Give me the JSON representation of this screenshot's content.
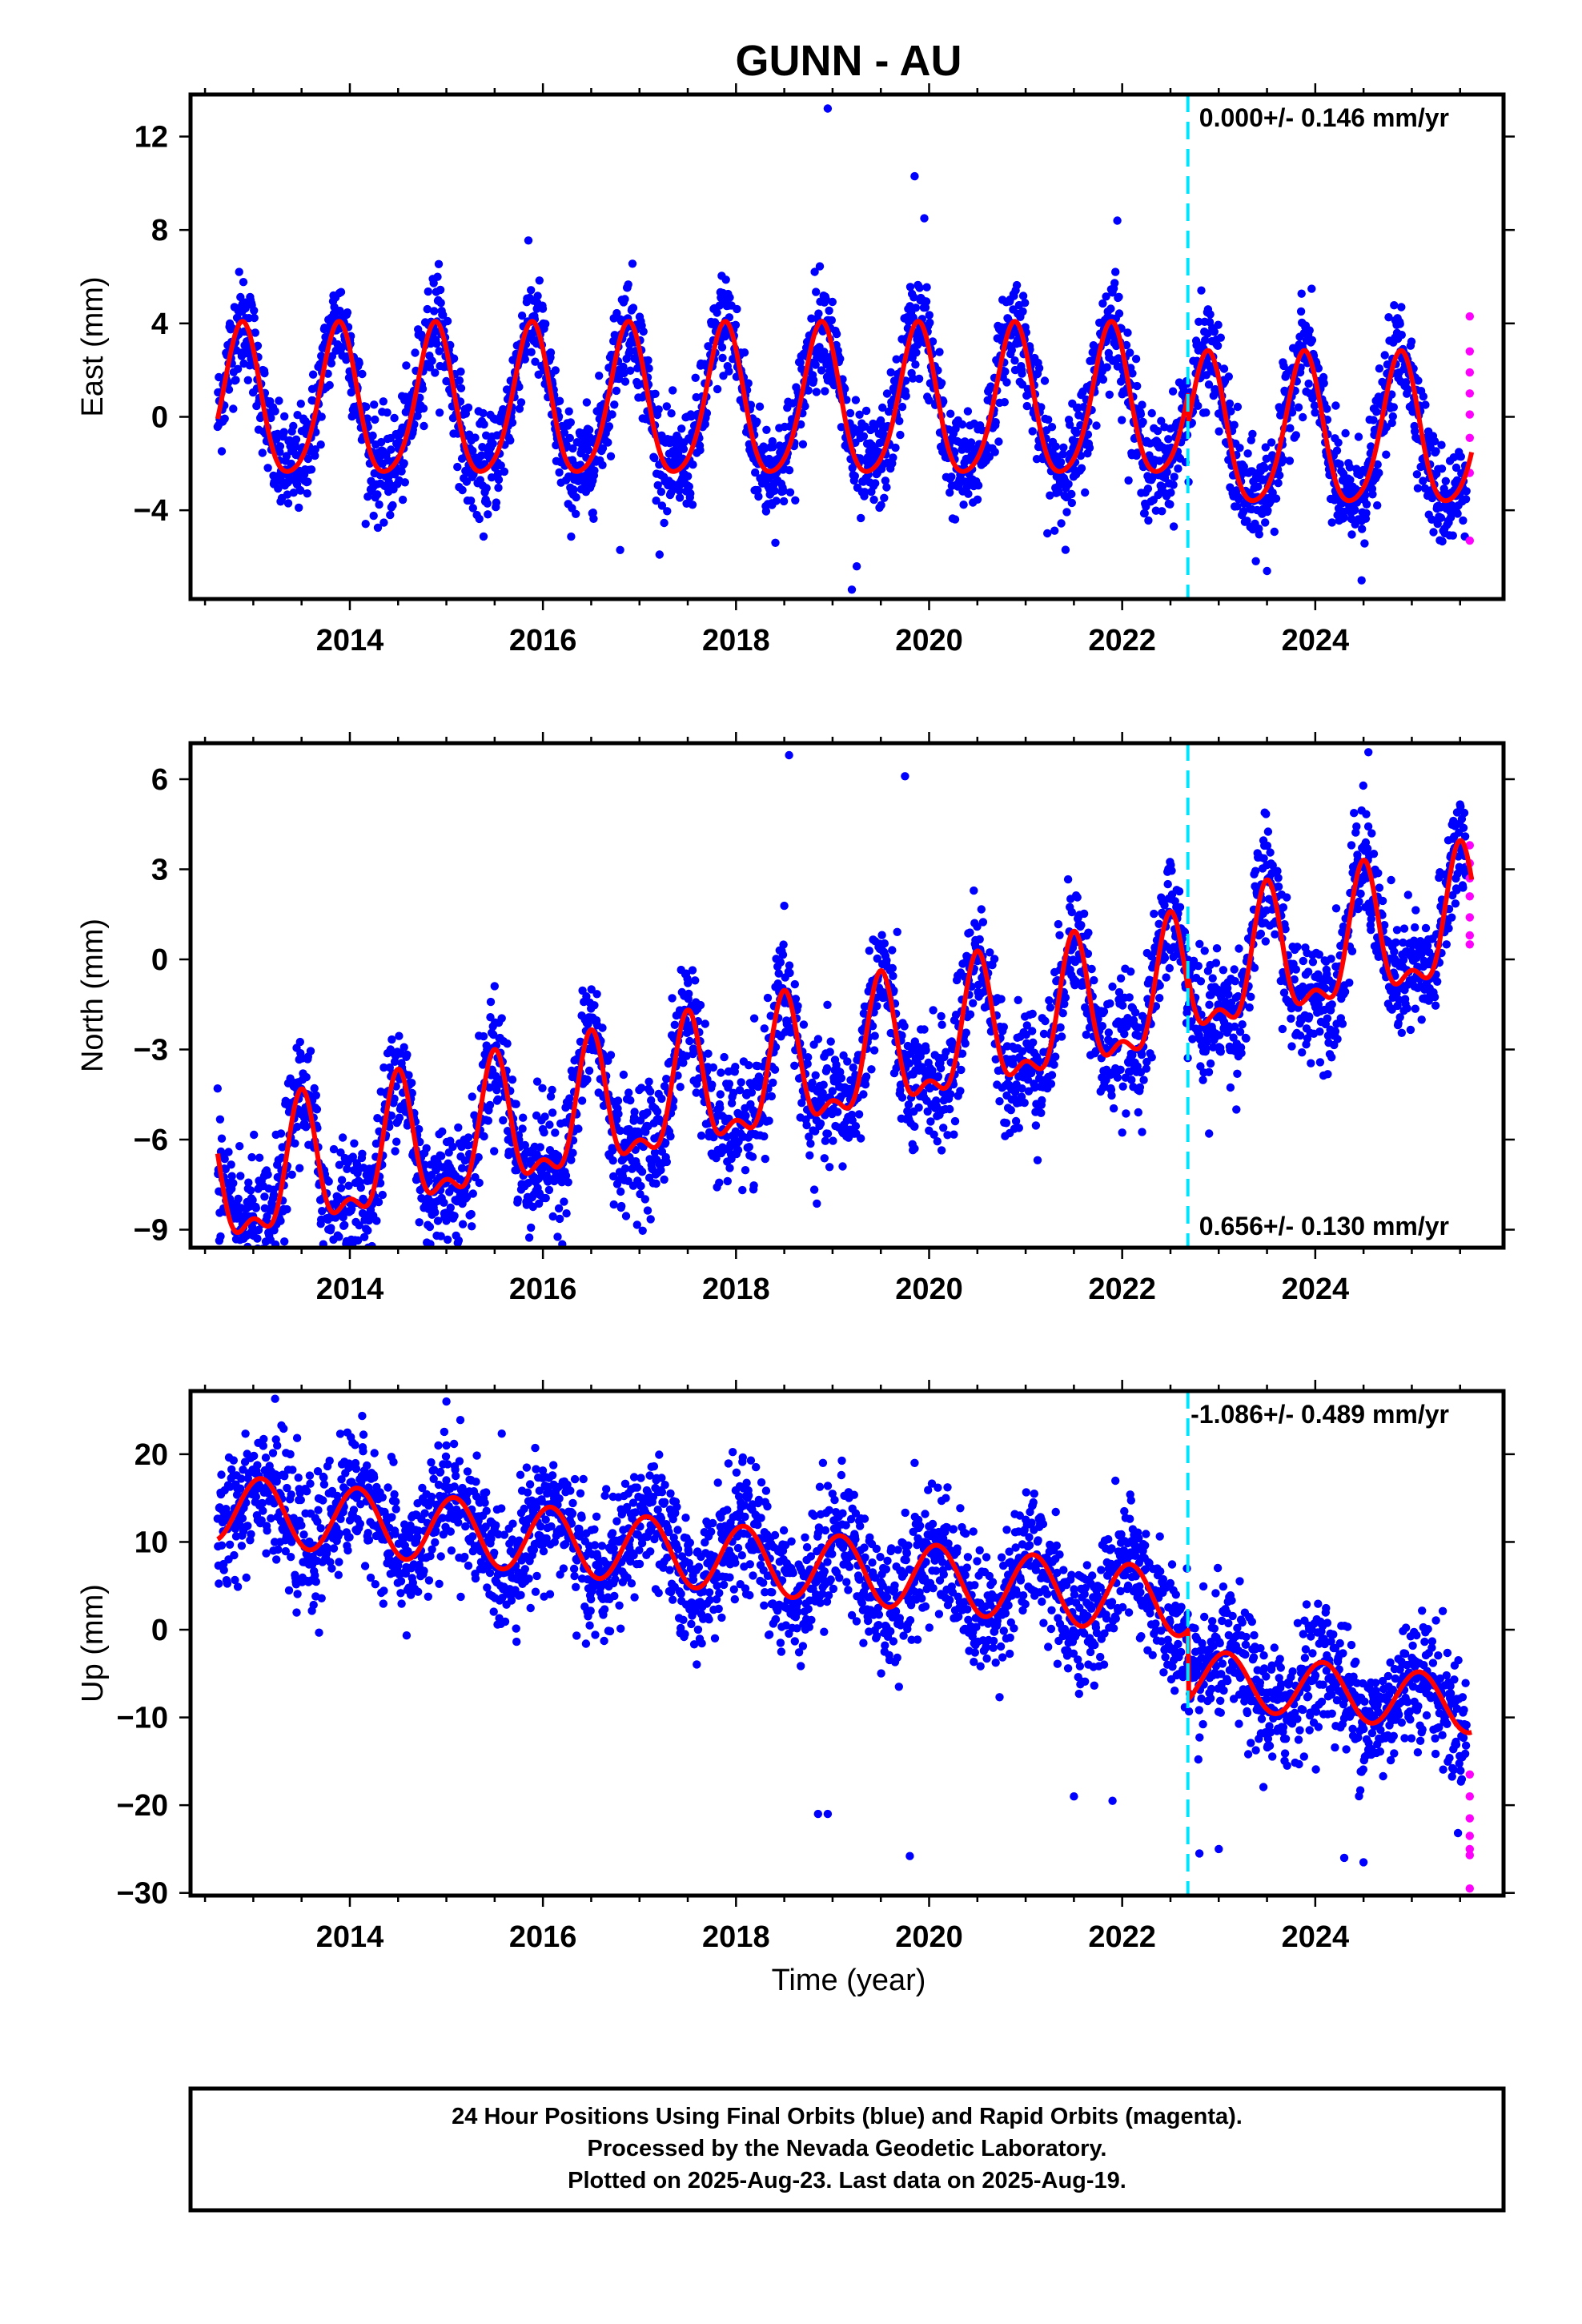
{
  "title": "GUNN - AU",
  "x_label": "Time (year)",
  "colors": {
    "final_orbits": "#0000ff",
    "rapid_orbits": "#ff00ff",
    "model": "#ff0000",
    "equipment_change": "#00e5ff",
    "frame": "#000000"
  },
  "caption": {
    "line1": "24 Hour Positions Using Final Orbits (blue) and Rapid Orbits (magenta).",
    "line2": "Processed by the Nevada Geodetic Laboratory.",
    "line3": "Plotted on 2025-Aug-23. Last data on 2025-Aug-19."
  },
  "chart_data": [
    {
      "type": "scatter",
      "component": "East",
      "ylabel": "East (mm)",
      "xlabel": "",
      "xlim": [
        2012.35,
        2025.95
      ],
      "ylim": [
        -7.8,
        13.8
      ],
      "xticks": [
        2014,
        2016,
        2018,
        2020,
        2022,
        2024
      ],
      "yticks": [
        -4,
        0,
        4,
        8,
        12
      ],
      "ytick_labels": [
        "−4",
        "0",
        "4",
        "8",
        "12"
      ],
      "rate_label": "0.000+/- 0.146 mm/yr",
      "rate_position": "top-right",
      "equipment_change_year": 2022.68,
      "data_start": 2012.63,
      "final_end": 2025.57,
      "model": {
        "segments": [
          {
            "from": 2012.63,
            "to": 2022.68,
            "offset": 0.4,
            "trend": 0.0,
            "ann_amp": 3.2,
            "ann_phase": 2012.88,
            "semi_amp": 0.5,
            "semi_phase": 2012.9
          },
          {
            "from": 2022.68,
            "to": 2025.62,
            "offset": -0.85,
            "trend": 0.0,
            "ann_amp": 3.2,
            "ann_phase": 2012.88,
            "semi_amp": 0.5,
            "semi_phase": 2012.9
          }
        ]
      },
      "scatter_noise_sd": 1.1,
      "outliers": [
        [
          2018.95,
          13.2
        ],
        [
          2019.85,
          10.3
        ],
        [
          2019.95,
          8.5
        ],
        [
          2021.95,
          8.4
        ],
        [
          2019.2,
          -7.4
        ],
        [
          2019.25,
          -6.4
        ],
        [
          2023.5,
          -6.6
        ],
        [
          2024.48,
          -7.0
        ],
        [
          2016.8,
          -5.7
        ]
      ],
      "rapid_points": [
        [
          2025.6,
          4.3
        ],
        [
          2025.6,
          2.8
        ],
        [
          2025.6,
          1.9
        ],
        [
          2025.6,
          1.0
        ],
        [
          2025.6,
          0.1
        ],
        [
          2025.6,
          -0.9
        ],
        [
          2025.6,
          -2.4
        ],
        [
          2025.6,
          -5.3
        ]
      ]
    },
    {
      "type": "scatter",
      "component": "North",
      "ylabel": "North (mm)",
      "xlabel": "",
      "xlim": [
        2012.35,
        2025.95
      ],
      "ylim": [
        -9.6,
        7.2
      ],
      "xticks": [
        2014,
        2016,
        2018,
        2020,
        2022,
        2024
      ],
      "yticks": [
        -9,
        -6,
        -3,
        0,
        3,
        6
      ],
      "ytick_labels": [
        "−9",
        "−6",
        "−3",
        "0",
        "3",
        "6"
      ],
      "rate_label": "0.656+/- 0.130 mm/yr",
      "rate_position": "bottom-right",
      "equipment_change_year": 2022.68,
      "data_start": 2012.63,
      "final_end": 2025.57,
      "model": {
        "segments": [
          {
            "from": 2012.63,
            "to": 2022.68,
            "offset": -3.6,
            "trend": 0.656,
            "ann_amp": 2.0,
            "ann_phase": 2013.5,
            "semi_amp": 0.9,
            "semi_phase": 2013.5
          },
          {
            "from": 2022.68,
            "to": 2025.62,
            "offset": -3.2,
            "trend": 0.656,
            "ann_amp": 2.0,
            "ann_phase": 2013.5,
            "semi_amp": 0.9,
            "semi_phase": 2013.5
          }
        ]
      },
      "scatter_noise_sd": 1.0,
      "outliers": [
        [
          2012.9,
          -9.3
        ],
        [
          2014.9,
          -9.2
        ],
        [
          2018.55,
          6.8
        ],
        [
          2019.85,
          -6.3
        ],
        [
          2019.75,
          6.1
        ],
        [
          2022.9,
          -5.8
        ],
        [
          2024.55,
          6.9
        ]
      ],
      "rapid_points": [
        [
          2025.6,
          3.8
        ],
        [
          2025.6,
          3.2
        ],
        [
          2025.6,
          2.7
        ],
        [
          2025.6,
          2.1
        ],
        [
          2025.6,
          1.4
        ],
        [
          2025.6,
          0.8
        ],
        [
          2025.6,
          0.5
        ]
      ]
    },
    {
      "type": "scatter",
      "component": "Up",
      "ylabel": "Up (mm)",
      "xlabel": "Time (year)",
      "xlim": [
        2012.35,
        2025.95
      ],
      "ylim": [
        -30.3,
        27.2
      ],
      "xticks": [
        2014,
        2016,
        2018,
        2020,
        2022,
        2024
      ],
      "yticks": [
        -30,
        -20,
        -10,
        0,
        10,
        20
      ],
      "ytick_labels": [
        "−30",
        "−20",
        "−10",
        "0",
        "10",
        "20"
      ],
      "rate_label": "-1.086+/- 0.489 mm/yr",
      "rate_position": "top-right",
      "equipment_change_year": 2022.68,
      "data_start": 2012.63,
      "final_end": 2025.57,
      "model": {
        "segments": [
          {
            "from": 2012.63,
            "to": 2022.68,
            "offset": 7.0,
            "trend": -1.086,
            "ann_amp": 3.8,
            "ann_phase": 2013.08,
            "semi_amp": 0.0,
            "semi_phase": 2013.08
          },
          {
            "from": 2022.68,
            "to": 2025.62,
            "offset": -1.4,
            "trend": -1.086,
            "ann_amp": 3.2,
            "ann_phase": 2013.08,
            "semi_amp": 0.0,
            "semi_phase": 2013.08
          }
        ]
      },
      "scatter_noise_sd": 3.6,
      "outliers": [
        [
          2015.0,
          26.0
        ],
        [
          2015.0,
          21.0
        ],
        [
          2018.9,
          19.0
        ],
        [
          2019.85,
          19.0
        ],
        [
          2018.85,
          -21.0
        ],
        [
          2018.95,
          -21.0
        ],
        [
          2019.8,
          -25.8
        ],
        [
          2022.8,
          -25.5
        ],
        [
          2024.5,
          -26.5
        ],
        [
          2024.3,
          -26.0
        ],
        [
          2023.0,
          -25.0
        ],
        [
          2021.5,
          -19.0
        ],
        [
          2021.9,
          -19.5
        ]
      ],
      "rapid_points": [
        [
          2025.6,
          -16.5
        ],
        [
          2025.6,
          -19.0
        ],
        [
          2025.6,
          -21.5
        ],
        [
          2025.6,
          -23.5
        ],
        [
          2025.6,
          -25.0
        ],
        [
          2025.6,
          -25.7
        ],
        [
          2025.6,
          -29.5
        ]
      ]
    }
  ]
}
